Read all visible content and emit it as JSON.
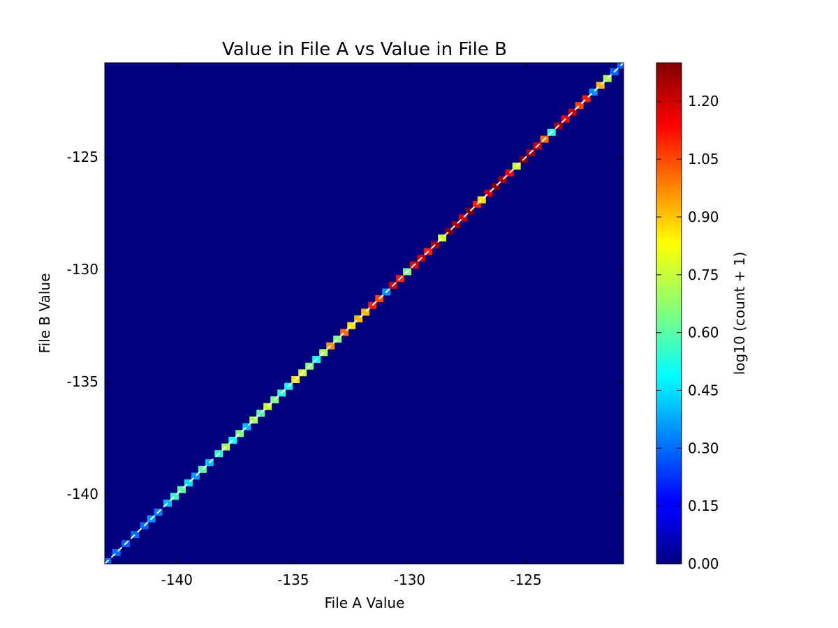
{
  "chart_data": {
    "type": "heatmap",
    "title": "Value in File A vs Value in File B",
    "xlabel": "File A Value",
    "ylabel": "File B Value",
    "xlim": [
      -143.1,
      -120.8
    ],
    "ylim": [
      -143.1,
      -120.8
    ],
    "xticks": [
      -140,
      -135,
      -130,
      -125
    ],
    "yticks": [
      -140,
      -135,
      -130,
      -125
    ],
    "xtick_labels": [
      "-140",
      "-135",
      "-130",
      "-125"
    ],
    "ytick_labels": [
      "-140",
      "-135",
      "-130",
      "-125"
    ],
    "background_color": "#00007f",
    "reference_line": {
      "style": "dashed",
      "color": "#ffffff",
      "from": [
        -143.1,
        -143.1
      ],
      "to": [
        -120.8,
        -120.8
      ]
    },
    "colorbar": {
      "label": "log10 (count + 1)",
      "colormap": "jet",
      "range": [
        0,
        1.3
      ],
      "ticks": [
        0.0,
        0.15,
        0.3,
        0.45,
        0.6,
        0.75,
        0.9,
        1.05,
        1.2
      ],
      "tick_labels": [
        "0.00",
        "0.15",
        "0.30",
        "0.45",
        "0.60",
        "0.75",
        "0.90",
        "1.05",
        "1.20"
      ]
    },
    "cells": [
      {
        "x": -143.0,
        "y": -143.0,
        "v": 0.3
      },
      {
        "x": -142.6,
        "y": -142.6,
        "v": 0.3
      },
      {
        "x": -142.2,
        "y": -142.2,
        "v": 0.28
      },
      {
        "x": -141.8,
        "y": -141.8,
        "v": 0.3
      },
      {
        "x": -141.4,
        "y": -141.4,
        "v": 0.3
      },
      {
        "x": -141.1,
        "y": -141.1,
        "v": 0.35
      },
      {
        "x": -140.8,
        "y": -140.8,
        "v": 0.32
      },
      {
        "x": -140.4,
        "y": -140.4,
        "v": 0.4
      },
      {
        "x": -140.1,
        "y": -140.1,
        "v": 0.55
      },
      {
        "x": -139.8,
        "y": -139.8,
        "v": 0.6
      },
      {
        "x": -139.5,
        "y": -139.5,
        "v": 0.45
      },
      {
        "x": -139.2,
        "y": -139.2,
        "v": 0.35
      },
      {
        "x": -138.9,
        "y": -138.9,
        "v": 0.6
      },
      {
        "x": -138.6,
        "y": -138.6,
        "v": 0.4
      },
      {
        "x": -138.2,
        "y": -138.2,
        "v": 0.55
      },
      {
        "x": -137.9,
        "y": -137.9,
        "v": 0.7
      },
      {
        "x": -137.6,
        "y": -137.6,
        "v": 0.5
      },
      {
        "x": -137.3,
        "y": -137.3,
        "v": 0.65
      },
      {
        "x": -137.0,
        "y": -137.0,
        "v": 0.4
      },
      {
        "x": -136.7,
        "y": -136.7,
        "v": 0.7
      },
      {
        "x": -136.4,
        "y": -136.4,
        "v": 0.6
      },
      {
        "x": -136.1,
        "y": -136.1,
        "v": 0.75
      },
      {
        "x": -135.8,
        "y": -135.8,
        "v": 0.65
      },
      {
        "x": -135.5,
        "y": -135.5,
        "v": 0.55
      },
      {
        "x": -135.2,
        "y": -135.2,
        "v": 0.5
      },
      {
        "x": -134.9,
        "y": -134.9,
        "v": 0.85
      },
      {
        "x": -134.6,
        "y": -134.6,
        "v": 0.75
      },
      {
        "x": -134.3,
        "y": -134.3,
        "v": 0.65
      },
      {
        "x": -134.0,
        "y": -134.0,
        "v": 0.5
      },
      {
        "x": -133.7,
        "y": -133.7,
        "v": 0.7
      },
      {
        "x": -133.4,
        "y": -133.4,
        "v": 0.95
      },
      {
        "x": -133.1,
        "y": -133.1,
        "v": 0.65
      },
      {
        "x": -132.8,
        "y": -132.8,
        "v": 1.0
      },
      {
        "x": -132.5,
        "y": -132.5,
        "v": 0.85
      },
      {
        "x": -132.2,
        "y": -132.2,
        "v": 0.9
      },
      {
        "x": -131.9,
        "y": -131.9,
        "v": 0.9
      },
      {
        "x": -131.6,
        "y": -131.6,
        "v": 1.1
      },
      {
        "x": -131.3,
        "y": -131.3,
        "v": 1.05
      },
      {
        "x": -131.0,
        "y": -131.0,
        "v": 0.35
      },
      {
        "x": -130.7,
        "y": -130.7,
        "v": 1.2
      },
      {
        "x": -130.4,
        "y": -130.4,
        "v": 1.1
      },
      {
        "x": -130.1,
        "y": -130.1,
        "v": 0.65
      },
      {
        "x": -129.8,
        "y": -129.8,
        "v": 1.15
      },
      {
        "x": -129.5,
        "y": -129.5,
        "v": 1.2
      },
      {
        "x": -129.2,
        "y": -129.2,
        "v": 1.1
      },
      {
        "x": -128.9,
        "y": -128.9,
        "v": 1.25
      },
      {
        "x": -128.6,
        "y": -128.6,
        "v": 0.75
      },
      {
        "x": -128.3,
        "y": -128.3,
        "v": 1.3
      },
      {
        "x": -128.0,
        "y": -128.0,
        "v": 1.25
      },
      {
        "x": -127.7,
        "y": -127.7,
        "v": 1.2
      },
      {
        "x": -127.4,
        "y": -127.4,
        "v": 1.3
      },
      {
        "x": -127.1,
        "y": -127.1,
        "v": 1.1
      },
      {
        "x": -126.9,
        "y": -126.9,
        "v": 0.85
      },
      {
        "x": -126.6,
        "y": -126.6,
        "v": 1.2
      },
      {
        "x": -126.3,
        "y": -126.3,
        "v": 1.3
      },
      {
        "x": -126.0,
        "y": -126.0,
        "v": 1.25
      },
      {
        "x": -125.7,
        "y": -125.7,
        "v": 1.15
      },
      {
        "x": -125.4,
        "y": -125.4,
        "v": 0.75
      },
      {
        "x": -125.1,
        "y": -125.1,
        "v": 1.3
      },
      {
        "x": -124.8,
        "y": -124.8,
        "v": 1.25
      },
      {
        "x": -124.5,
        "y": -124.5,
        "v": 1.2
      },
      {
        "x": -124.2,
        "y": -124.2,
        "v": 1.0
      },
      {
        "x": -123.9,
        "y": -123.9,
        "v": 0.55
      },
      {
        "x": -123.6,
        "y": -123.6,
        "v": 1.25
      },
      {
        "x": -123.3,
        "y": -123.3,
        "v": 1.15
      },
      {
        "x": -123.0,
        "y": -123.0,
        "v": 1.2
      },
      {
        "x": -122.7,
        "y": -122.7,
        "v": 1.05
      },
      {
        "x": -122.4,
        "y": -122.4,
        "v": 1.1
      },
      {
        "x": -122.1,
        "y": -122.1,
        "v": 0.35
      },
      {
        "x": -121.8,
        "y": -121.8,
        "v": 0.9
      },
      {
        "x": -121.5,
        "y": -121.5,
        "v": 0.7
      },
      {
        "x": -121.2,
        "y": -121.2,
        "v": 0.3
      },
      {
        "x": -120.9,
        "y": -120.9,
        "v": 0.3
      }
    ]
  }
}
